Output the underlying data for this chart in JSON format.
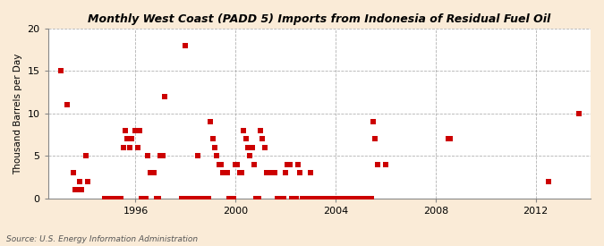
{
  "title": "Monthly West Coast (PADD 5) Imports from Indonesia of Residual Fuel Oil",
  "ylabel": "Thousand Barrels per Day",
  "source": "Source: U.S. Energy Information Administration",
  "xlim": [
    1992.5,
    2014.2
  ],
  "ylim": [
    0,
    20
  ],
  "yticks": [
    0,
    5,
    10,
    15,
    20
  ],
  "xticks": [
    1996,
    2000,
    2004,
    2008,
    2012
  ],
  "background_color": "#faebd7",
  "plot_bg_color": "#ffffff",
  "marker_color": "#cc0000",
  "marker_size": 5,
  "grid_color": "#aaaaaa",
  "data_points": [
    [
      1993.0,
      15.0
    ],
    [
      1993.25,
      11.0
    ],
    [
      1993.5,
      3.0
    ],
    [
      1993.6,
      1.0
    ],
    [
      1993.67,
      1.0
    ],
    [
      1993.75,
      2.0
    ],
    [
      1993.83,
      1.0
    ],
    [
      1994.0,
      5.0
    ],
    [
      1994.08,
      2.0
    ],
    [
      1995.5,
      6.0
    ],
    [
      1995.58,
      8.0
    ],
    [
      1995.67,
      7.0
    ],
    [
      1995.75,
      6.0
    ],
    [
      1995.83,
      7.0
    ],
    [
      1996.0,
      8.0
    ],
    [
      1996.08,
      6.0
    ],
    [
      1996.17,
      8.0
    ],
    [
      1996.5,
      5.0
    ],
    [
      1996.58,
      3.0
    ],
    [
      1996.67,
      3.0
    ],
    [
      1996.75,
      3.0
    ],
    [
      1997.0,
      5.0
    ],
    [
      1997.08,
      5.0
    ],
    [
      1997.17,
      12.0
    ],
    [
      1998.0,
      18.0
    ],
    [
      1998.5,
      5.0
    ],
    [
      1999.0,
      9.0
    ],
    [
      1999.08,
      7.0
    ],
    [
      1999.17,
      6.0
    ],
    [
      1999.25,
      5.0
    ],
    [
      1999.33,
      4.0
    ],
    [
      1999.42,
      4.0
    ],
    [
      1999.5,
      3.0
    ],
    [
      1999.58,
      3.0
    ],
    [
      1999.67,
      3.0
    ],
    [
      2000.0,
      4.0
    ],
    [
      2000.08,
      4.0
    ],
    [
      2000.17,
      3.0
    ],
    [
      2000.25,
      3.0
    ],
    [
      2000.33,
      8.0
    ],
    [
      2000.42,
      7.0
    ],
    [
      2000.5,
      6.0
    ],
    [
      2000.58,
      5.0
    ],
    [
      2000.67,
      6.0
    ],
    [
      2000.75,
      4.0
    ],
    [
      2001.0,
      8.0
    ],
    [
      2001.08,
      7.0
    ],
    [
      2001.17,
      6.0
    ],
    [
      2001.25,
      3.0
    ],
    [
      2001.33,
      3.0
    ],
    [
      2001.42,
      3.0
    ],
    [
      2001.5,
      3.0
    ],
    [
      2001.58,
      3.0
    ],
    [
      2002.0,
      3.0
    ],
    [
      2002.08,
      4.0
    ],
    [
      2002.17,
      4.0
    ],
    [
      2002.5,
      4.0
    ],
    [
      2002.58,
      3.0
    ],
    [
      2003.0,
      3.0
    ],
    [
      2005.5,
      9.0
    ],
    [
      2005.58,
      7.0
    ],
    [
      2005.67,
      4.0
    ],
    [
      2006.0,
      4.0
    ],
    [
      2008.5,
      7.0
    ],
    [
      2008.58,
      7.0
    ],
    [
      2012.5,
      2.0
    ],
    [
      2013.75,
      10.0
    ],
    [
      1994.75,
      0.0
    ],
    [
      1994.83,
      0.0
    ],
    [
      1994.92,
      0.0
    ],
    [
      1995.0,
      0.0
    ],
    [
      1995.08,
      0.0
    ],
    [
      1995.17,
      0.0
    ],
    [
      1995.25,
      0.0
    ],
    [
      1995.33,
      0.0
    ],
    [
      1995.42,
      0.0
    ],
    [
      1996.25,
      0.0
    ],
    [
      1996.33,
      0.0
    ],
    [
      1996.42,
      0.0
    ],
    [
      1996.83,
      0.0
    ],
    [
      1996.92,
      0.0
    ],
    [
      1997.83,
      0.0
    ],
    [
      1997.92,
      0.0
    ],
    [
      1998.08,
      0.0
    ],
    [
      1998.17,
      0.0
    ],
    [
      1998.25,
      0.0
    ],
    [
      1998.33,
      0.0
    ],
    [
      1998.42,
      0.0
    ],
    [
      1998.58,
      0.0
    ],
    [
      1998.67,
      0.0
    ],
    [
      1998.75,
      0.0
    ],
    [
      1998.83,
      0.0
    ],
    [
      1998.92,
      0.0
    ],
    [
      1999.75,
      0.0
    ],
    [
      1999.83,
      0.0
    ],
    [
      1999.92,
      0.0
    ],
    [
      2000.83,
      0.0
    ],
    [
      2000.92,
      0.0
    ],
    [
      2001.67,
      0.0
    ],
    [
      2001.75,
      0.0
    ],
    [
      2001.83,
      0.0
    ],
    [
      2001.92,
      0.0
    ],
    [
      2002.25,
      0.0
    ],
    [
      2002.33,
      0.0
    ],
    [
      2002.42,
      0.0
    ],
    [
      2002.67,
      0.0
    ],
    [
      2002.75,
      0.0
    ],
    [
      2002.83,
      0.0
    ],
    [
      2002.92,
      0.0
    ],
    [
      2003.08,
      0.0
    ],
    [
      2003.17,
      0.0
    ],
    [
      2003.25,
      0.0
    ],
    [
      2003.33,
      0.0
    ],
    [
      2003.42,
      0.0
    ],
    [
      2003.5,
      0.0
    ],
    [
      2003.58,
      0.0
    ],
    [
      2003.67,
      0.0
    ],
    [
      2003.75,
      0.0
    ],
    [
      2003.83,
      0.0
    ],
    [
      2003.92,
      0.0
    ],
    [
      2004.0,
      0.0
    ],
    [
      2004.08,
      0.0
    ],
    [
      2004.17,
      0.0
    ],
    [
      2004.25,
      0.0
    ],
    [
      2004.33,
      0.0
    ],
    [
      2004.42,
      0.0
    ],
    [
      2004.5,
      0.0
    ],
    [
      2004.58,
      0.0
    ],
    [
      2004.67,
      0.0
    ],
    [
      2004.75,
      0.0
    ],
    [
      2004.83,
      0.0
    ],
    [
      2004.92,
      0.0
    ],
    [
      2005.0,
      0.0
    ],
    [
      2005.08,
      0.0
    ],
    [
      2005.17,
      0.0
    ],
    [
      2005.25,
      0.0
    ],
    [
      2005.33,
      0.0
    ],
    [
      2005.42,
      0.0
    ]
  ]
}
